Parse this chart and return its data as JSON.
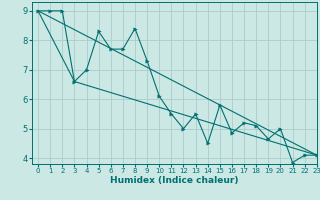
{
  "xlabel": "Humidex (Indice chaleur)",
  "xlim": [
    -0.5,
    23
  ],
  "ylim": [
    3.8,
    9.3
  ],
  "xticks": [
    0,
    1,
    2,
    3,
    4,
    5,
    6,
    7,
    8,
    9,
    10,
    11,
    12,
    13,
    14,
    15,
    16,
    17,
    18,
    19,
    20,
    21,
    22,
    23
  ],
  "yticks": [
    4,
    5,
    6,
    7,
    8,
    9
  ],
  "background_color": "#cce8e4",
  "grid_color": "#aacccc",
  "line_color": "#007070",
  "line1_x": [
    0,
    1,
    2,
    3,
    4,
    5,
    6,
    7,
    8,
    9,
    10,
    11,
    12,
    13,
    14,
    15,
    16,
    17,
    18,
    19,
    20,
    21,
    22,
    23
  ],
  "line1_y": [
    9,
    9,
    9,
    6.6,
    7.0,
    8.3,
    7.7,
    7.7,
    8.4,
    7.3,
    6.1,
    5.5,
    5.0,
    5.5,
    4.5,
    5.8,
    4.85,
    5.2,
    5.1,
    4.65,
    5.0,
    3.85,
    4.1,
    4.1
  ],
  "line2_x": [
    0,
    23
  ],
  "line2_y": [
    9,
    4.1
  ],
  "line3_x": [
    0,
    3,
    23
  ],
  "line3_y": [
    9,
    6.6,
    4.1
  ],
  "xlabel_fontsize": 6.5,
  "tick_fontsize": 5,
  "ytick_fontsize": 6,
  "lw": 0.8,
  "ms": 2.5
}
